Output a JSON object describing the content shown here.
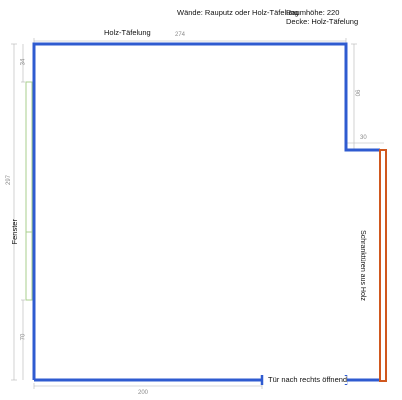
{
  "header": {
    "walls_note": "Wände: Rauputz oder Holz-Täfelung",
    "room_height": "Raumhöhe: 220",
    "ceiling": "Decke: Holz-Täfelung"
  },
  "labels": {
    "top_wall": "Holz-Täfelung",
    "window": "Fenster",
    "wardrobe": "Schranktüren aus Holz",
    "door": "Tür nach rechts öffnend"
  },
  "dimensions": {
    "top_width": "274",
    "left_top": "34",
    "left_total": "297",
    "left_bottom": "70",
    "right_upper": "90",
    "notch_width": "30",
    "bottom_width": "200"
  },
  "colors": {
    "wall": "#2f5bd0",
    "wardrobe": "#d0581e",
    "window": "#a8cf8c",
    "dimension": "#9a9a9a"
  }
}
